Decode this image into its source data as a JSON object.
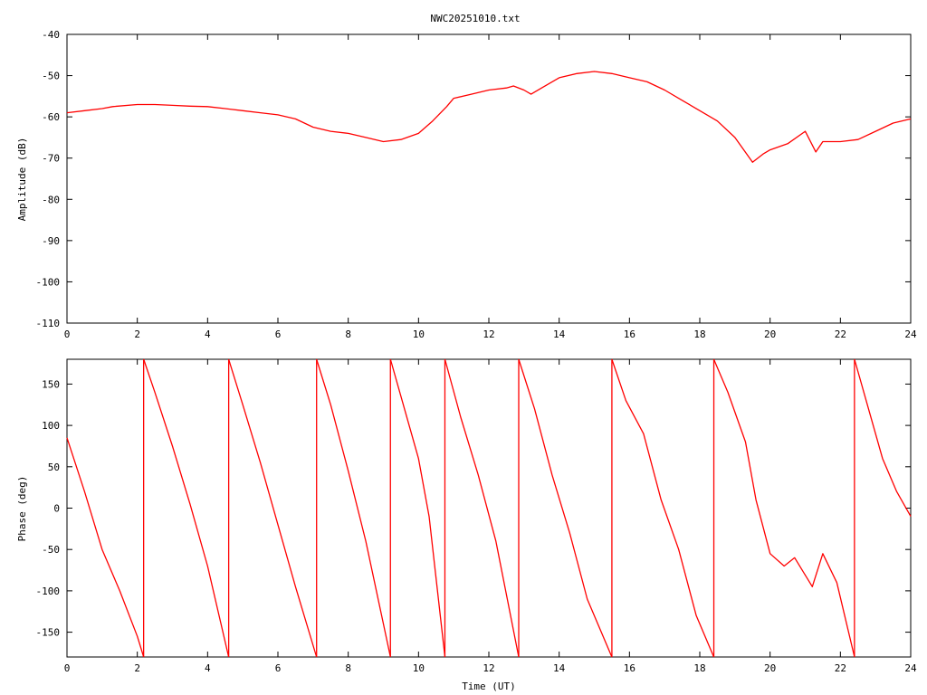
{
  "title": "NWC20251010.txt",
  "colors": {
    "series": "#ff0000",
    "axis": "#000000"
  },
  "chart_data": [
    {
      "type": "line",
      "xlabel": "",
      "ylabel": "Amplitude (dB)",
      "xlim": [
        0,
        24
      ],
      "ylim": [
        -110,
        -40
      ],
      "xticks": [
        "0",
        "2",
        "4",
        "6",
        "8",
        "10",
        "12",
        "14",
        "16",
        "18",
        "20",
        "22",
        "24"
      ],
      "yticks": [
        "-40",
        "-50",
        "-60",
        "-70",
        "-80",
        "-90",
        "-100",
        "-110"
      ],
      "grid": false,
      "series": [
        {
          "x": [
            0,
            0.5,
            1,
            1.3,
            2,
            2.5,
            3,
            3.5,
            4,
            4.5,
            5,
            5.5,
            6,
            6.5,
            7,
            7.5,
            8,
            8.5,
            9,
            9.5,
            10,
            10.4,
            10.8,
            11,
            11.5,
            12,
            12.5,
            12.7,
            13,
            13.2,
            13.5,
            14,
            14.5,
            15,
            15.5,
            16,
            16.5,
            17,
            17.5,
            18,
            18.5,
            19,
            19.5,
            19.8,
            20,
            20.5,
            21,
            21.3,
            21.5,
            22,
            22.5,
            23,
            23.5,
            24
          ],
          "values": [
            -59,
            -58.5,
            -58,
            -57.5,
            -57,
            -57,
            -57.2,
            -57.4,
            -57.5,
            -58,
            -58.5,
            -59,
            -59.5,
            -60.5,
            -62.5,
            -63.5,
            -64,
            -65,
            -66,
            -65.5,
            -64,
            -61,
            -57.5,
            -55.5,
            -54.5,
            -53.5,
            -53,
            -52.5,
            -53.5,
            -54.5,
            -53,
            -50.5,
            -49.5,
            -49,
            -49.5,
            -50.5,
            -51.5,
            -53.5,
            -56,
            -58.5,
            -61,
            -65,
            -71,
            -69,
            -68,
            -66.5,
            -63.5,
            -68.5,
            -66,
            -66,
            -65.5,
            -63.5,
            -61.5,
            -60.5
          ]
        }
      ]
    },
    {
      "type": "line",
      "xlabel": "Time (UT)",
      "ylabel": "Phase (deg)",
      "xlim": [
        0,
        24
      ],
      "ylim": [
        -180,
        180
      ],
      "xticks": [
        "0",
        "2",
        "4",
        "6",
        "8",
        "10",
        "12",
        "14",
        "16",
        "18",
        "20",
        "22",
        "24"
      ],
      "yticks": [
        "150",
        "100",
        "50",
        "0",
        "-50",
        "-100",
        "-150"
      ],
      "grid": false,
      "segments": [
        {
          "x": [
            0,
            0.5,
            1.0,
            1.5,
            2.0,
            2.18
          ],
          "values": [
            85,
            20,
            -50,
            -100,
            -155,
            -180
          ]
        },
        {
          "x": [
            2.18,
            2.5,
            3,
            3.5,
            4,
            4.6
          ],
          "values": [
            180,
            140,
            75,
            5,
            -70,
            -180
          ]
        },
        {
          "x": [
            4.6,
            5,
            5.5,
            6,
            6.5,
            7.1
          ],
          "values": [
            180,
            125,
            55,
            -20,
            -95,
            -180
          ]
        },
        {
          "x": [
            7.1,
            7.5,
            8,
            8.5,
            9.2
          ],
          "values": [
            180,
            125,
            45,
            -40,
            -180
          ]
        },
        {
          "x": [
            9.2,
            9.6,
            10,
            10.3,
            10.75
          ],
          "values": [
            180,
            120,
            60,
            -10,
            -180
          ]
        },
        {
          "x": [
            10.75,
            11.2,
            11.7,
            12.2,
            12.85
          ],
          "values": [
            180,
            110,
            40,
            -40,
            -180
          ]
        },
        {
          "x": [
            12.85,
            13.3,
            13.8,
            14.3,
            14.8,
            15.5
          ],
          "values": [
            180,
            120,
            40,
            -30,
            -110,
            -180
          ]
        },
        {
          "x": [
            15.5,
            15.9,
            16.4,
            16.9,
            17.4,
            17.9,
            18.4
          ],
          "values": [
            180,
            130,
            90,
            10,
            -50,
            -130,
            -180
          ]
        },
        {
          "x": [
            18.4,
            18.8,
            19.3,
            19.6,
            20,
            20.4,
            20.7,
            21.2,
            21.5,
            21.9,
            22.4
          ],
          "values": [
            180,
            140,
            80,
            10,
            -55,
            -70,
            -60,
            -95,
            -55,
            -90,
            -180
          ]
        },
        {
          "x": [
            22.4,
            22.8,
            23.2,
            23.6,
            24
          ],
          "values": [
            180,
            120,
            60,
            20,
            -10
          ]
        }
      ]
    }
  ]
}
